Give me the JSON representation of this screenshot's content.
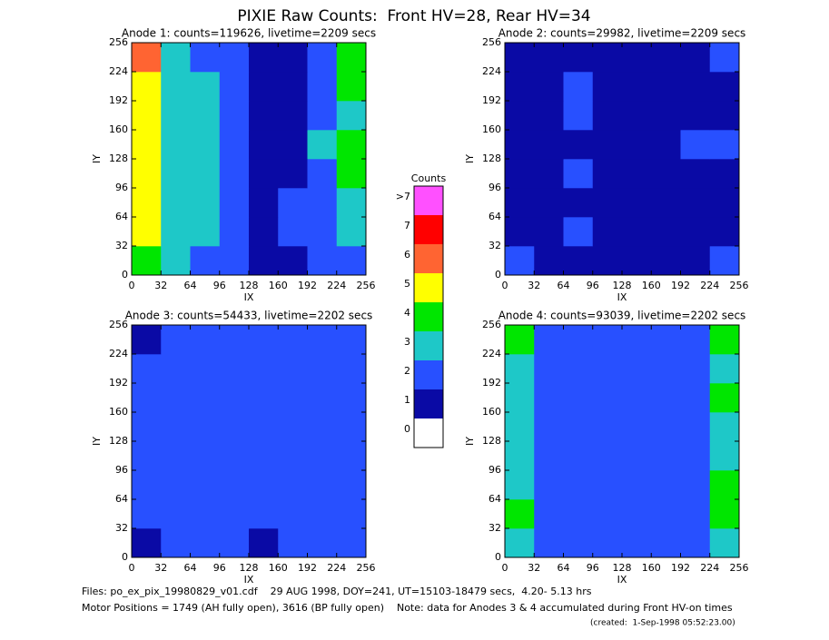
{
  "title": "PIXIE Raw Counts:  Front HV=28, Rear HV=34",
  "chart_data": [
    {
      "type": "heatmap",
      "title": "Anode 1: counts=119626, livetime=2209 secs",
      "x_label": "IX",
      "y_label": "IY",
      "xlim": [
        0,
        256
      ],
      "ylim": [
        0,
        256
      ],
      "xticks": [
        0,
        32,
        64,
        96,
        128,
        160,
        192,
        224,
        256
      ],
      "yticks": [
        0,
        32,
        64,
        96,
        128,
        160,
        192,
        224,
        256
      ],
      "z": [
        [
          4,
          3,
          2,
          2,
          1,
          1,
          2,
          2
        ],
        [
          5,
          3,
          3,
          2,
          1,
          2,
          2,
          3
        ],
        [
          5,
          3,
          3,
          2,
          1,
          2,
          2,
          3
        ],
        [
          5,
          3,
          3,
          2,
          1,
          1,
          2,
          4
        ],
        [
          5,
          3,
          3,
          2,
          1,
          1,
          3,
          4
        ],
        [
          5,
          3,
          3,
          2,
          1,
          1,
          2,
          3
        ],
        [
          5,
          3,
          3,
          2,
          1,
          1,
          2,
          4
        ],
        [
          6,
          3,
          2,
          2,
          1,
          1,
          2,
          4
        ]
      ]
    },
    {
      "type": "heatmap",
      "title": "Anode 2: counts=29982, livetime=2209 secs",
      "x_label": "IX",
      "y_label": "IY",
      "xlim": [
        0,
        256
      ],
      "ylim": [
        0,
        256
      ],
      "xticks": [
        0,
        32,
        64,
        96,
        128,
        160,
        192,
        224,
        256
      ],
      "yticks": [
        0,
        32,
        64,
        96,
        128,
        160,
        192,
        224,
        256
      ],
      "z": [
        [
          2,
          1,
          1,
          1,
          1,
          1,
          1,
          2
        ],
        [
          1,
          1,
          2,
          1,
          1,
          1,
          1,
          1
        ],
        [
          1,
          1,
          1,
          1,
          1,
          1,
          1,
          1
        ],
        [
          1,
          1,
          2,
          1,
          1,
          1,
          1,
          1
        ],
        [
          1,
          1,
          1,
          1,
          1,
          1,
          2,
          2
        ],
        [
          1,
          1,
          2,
          1,
          1,
          1,
          1,
          1
        ],
        [
          1,
          1,
          2,
          1,
          1,
          1,
          1,
          1
        ],
        [
          1,
          1,
          1,
          1,
          1,
          1,
          1,
          2
        ]
      ]
    },
    {
      "type": "heatmap",
      "title": "Anode 3: counts=54433, livetime=2202 secs",
      "x_label": "IX",
      "y_label": "IY",
      "xlim": [
        0,
        256
      ],
      "ylim": [
        0,
        256
      ],
      "xticks": [
        0,
        32,
        64,
        96,
        128,
        160,
        192,
        224,
        256
      ],
      "yticks": [
        0,
        32,
        64,
        96,
        128,
        160,
        192,
        224,
        256
      ],
      "z": [
        [
          1,
          2,
          2,
          2,
          1,
          2,
          2,
          2
        ],
        [
          2,
          2,
          2,
          2,
          2,
          2,
          2,
          2
        ],
        [
          2,
          2,
          2,
          2,
          2,
          2,
          2,
          2
        ],
        [
          2,
          2,
          2,
          2,
          2,
          2,
          2,
          2
        ],
        [
          2,
          2,
          2,
          2,
          2,
          2,
          2,
          2
        ],
        [
          2,
          2,
          2,
          2,
          2,
          2,
          2,
          2
        ],
        [
          2,
          2,
          2,
          2,
          2,
          2,
          2,
          2
        ],
        [
          1,
          2,
          2,
          2,
          2,
          2,
          2,
          2
        ]
      ]
    },
    {
      "type": "heatmap",
      "title": "Anode 4: counts=93039, livetime=2202 secs",
      "x_label": "IX",
      "y_label": "IY",
      "xlim": [
        0,
        256
      ],
      "ylim": [
        0,
        256
      ],
      "xticks": [
        0,
        32,
        64,
        96,
        128,
        160,
        192,
        224,
        256
      ],
      "yticks": [
        0,
        32,
        64,
        96,
        128,
        160,
        192,
        224,
        256
      ],
      "z": [
        [
          3,
          2,
          2,
          2,
          2,
          2,
          2,
          3
        ],
        [
          4,
          2,
          2,
          2,
          2,
          2,
          2,
          4
        ],
        [
          3,
          2,
          2,
          2,
          2,
          2,
          2,
          4
        ],
        [
          3,
          2,
          2,
          2,
          2,
          2,
          2,
          3
        ],
        [
          3,
          2,
          2,
          2,
          2,
          2,
          2,
          3
        ],
        [
          3,
          2,
          2,
          2,
          2,
          2,
          2,
          4
        ],
        [
          3,
          2,
          2,
          2,
          2,
          2,
          2,
          3
        ],
        [
          4,
          2,
          2,
          2,
          2,
          2,
          2,
          4
        ]
      ]
    }
  ],
  "colorbar": {
    "title": "Counts",
    "ticks": [
      0,
      1,
      2,
      3,
      4,
      5,
      6,
      7,
      {
        "value": 8,
        "label": ">7"
      }
    ],
    "colors": [
      "#ffffff",
      "#0a0aa5",
      "#2850ff",
      "#1ec8c8",
      "#00e600",
      "#ffff00",
      "#ff6432",
      "#ff0000",
      "#ff50ff"
    ]
  },
  "footer": [
    "Files: po_ex_pix_19980829_v01.cdf    29 AUG 1998, DOY=241, UT=15103-18479 secs,  4.20- 5.13 hrs",
    "Motor Positions = 1749 (AH fully open), 3616 (BP fully open)    Note: data for Anodes 3 & 4 accumulated during Front HV-on times",
    "(created:  1-Sep-1998 05:52:23.00)"
  ]
}
